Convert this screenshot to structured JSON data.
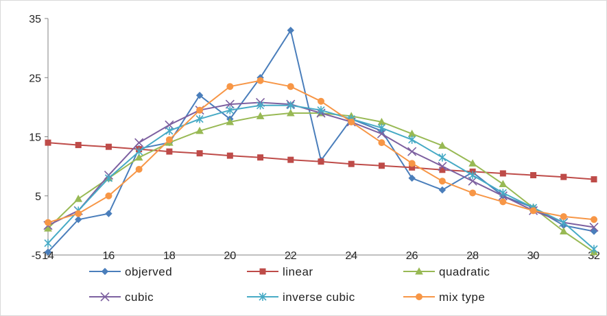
{
  "chart_data": {
    "type": "line",
    "title": "",
    "xlabel": "",
    "ylabel": "",
    "xlim": [
      14,
      32
    ],
    "ylim": [
      -5,
      35
    ],
    "x_ticks": [
      "14",
      "16",
      "18",
      "20",
      "22",
      "24",
      "26",
      "28",
      "30",
      "32"
    ],
    "y_ticks": [
      "-5",
      "5",
      "15",
      "25",
      "35"
    ],
    "grid": false,
    "legend_position": "bottom",
    "x": [
      14,
      15,
      16,
      17,
      18,
      19,
      20,
      21,
      22,
      23,
      24,
      25,
      26,
      27,
      28,
      29,
      30,
      31,
      32
    ],
    "series": [
      {
        "name": "objerved",
        "color": "#4a7ebb",
        "marker": "diamond",
        "values": [
          -4.5,
          1,
          2,
          13,
          14,
          22,
          18,
          25,
          33,
          11,
          18,
          16,
          8,
          6,
          9,
          5,
          3,
          0,
          -1
        ]
      },
      {
        "name": "linear",
        "color": "#be4b48",
        "marker": "square",
        "values": [
          14,
          13.6,
          13.3,
          12.9,
          12.5,
          12.2,
          11.8,
          11.5,
          11.1,
          10.8,
          10.4,
          10.1,
          9.8,
          9.4,
          9.1,
          8.8,
          8.5,
          8.2,
          7.8
        ]
      },
      {
        "name": "quadratic",
        "color": "#98b954",
        "marker": "triangle",
        "values": [
          -0.5,
          4.5,
          8,
          11.5,
          14,
          16,
          17.5,
          18.5,
          19,
          19,
          18.5,
          17.5,
          15.5,
          13.5,
          10.5,
          7,
          3,
          -1,
          -4.5
        ]
      },
      {
        "name": "cubic",
        "color": "#7d60a0",
        "marker": "x",
        "values": [
          0,
          2.5,
          8.5,
          14,
          17,
          19.5,
          20.5,
          20.8,
          20.5,
          19,
          17.5,
          15.5,
          12.5,
          10,
          7.5,
          5,
          2.5,
          0.5,
          -0.3
        ]
      },
      {
        "name": "inverse cubic",
        "color": "#46aac5",
        "marker": "star",
        "values": [
          -3,
          2.5,
          8,
          12.5,
          16,
          18,
          19.5,
          20.3,
          20.3,
          19.5,
          18,
          16.5,
          14.5,
          11.5,
          8.5,
          5.5,
          3,
          0.5,
          -4
        ]
      },
      {
        "name": "mix type",
        "color": "#f79646",
        "marker": "circle",
        "values": [
          0.5,
          2,
          5,
          9.5,
          14.5,
          19.5,
          23.5,
          24.5,
          23.5,
          21,
          17.5,
          14,
          10.5,
          7.5,
          5.5,
          4,
          2.5,
          1.5,
          1
        ]
      }
    ]
  }
}
